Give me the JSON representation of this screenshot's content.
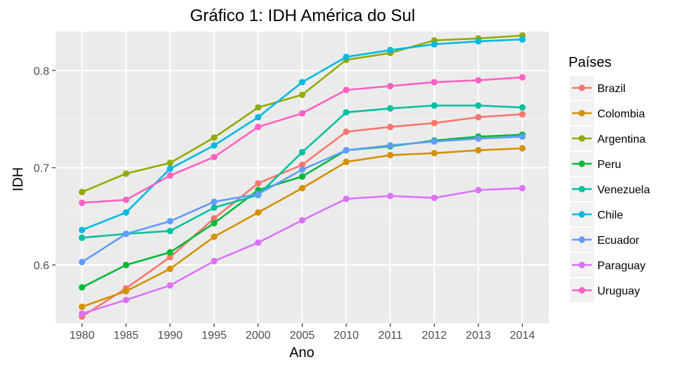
{
  "chart_data": {
    "type": "line",
    "title": "Gráfico 1: IDH América do Sul",
    "xlabel": "Ano",
    "ylabel": "IDH",
    "categories": [
      "1980",
      "1985",
      "1990",
      "1995",
      "2000",
      "2005",
      "2010",
      "2011",
      "2012",
      "2013",
      "2014"
    ],
    "ylim": [
      0.54,
      0.84
    ],
    "yticks": [
      0.6,
      0.7,
      0.8
    ],
    "ytick_labels": [
      "0.6",
      "0.7",
      "0.8"
    ],
    "grid": true,
    "legend": {
      "title": "Países",
      "position": "right"
    },
    "series": [
      {
        "name": "Brazil",
        "color": "#F8766D",
        "values": [
          0.547,
          0.576,
          0.608,
          0.648,
          0.684,
          0.703,
          0.737,
          0.742,
          0.746,
          0.752,
          0.755
        ]
      },
      {
        "name": "Colombia",
        "color": "#D39200",
        "values": [
          0.557,
          0.573,
          0.596,
          0.629,
          0.654,
          0.679,
          0.706,
          0.713,
          0.715,
          0.718,
          0.72
        ]
      },
      {
        "name": "Argentina",
        "color": "#93AA00",
        "values": [
          0.675,
          0.694,
          0.705,
          0.731,
          0.762,
          0.775,
          0.811,
          0.818,
          0.831,
          0.833,
          0.836
        ]
      },
      {
        "name": "Peru",
        "color": "#00BA38",
        "values": [
          0.577,
          0.6,
          0.613,
          0.643,
          0.677,
          0.691,
          0.718,
          0.722,
          0.728,
          0.732,
          0.734
        ]
      },
      {
        "name": "Venezuela",
        "color": "#00C19F",
        "values": [
          0.628,
          0.632,
          0.635,
          0.659,
          0.672,
          0.716,
          0.757,
          0.761,
          0.764,
          0.764,
          0.762
        ]
      },
      {
        "name": "Chile",
        "color": "#00B9E3",
        "values": [
          0.636,
          0.654,
          0.699,
          0.723,
          0.752,
          0.788,
          0.814,
          0.821,
          0.827,
          0.83,
          0.832
        ]
      },
      {
        "name": "Ecuador",
        "color": "#619CFF",
        "values": [
          0.603,
          0.632,
          0.645,
          0.665,
          0.673,
          0.698,
          0.718,
          0.723,
          0.727,
          0.73,
          0.732
        ]
      },
      {
        "name": "Paraguay",
        "color": "#DB72FB",
        "values": [
          0.55,
          0.564,
          0.579,
          0.604,
          0.623,
          0.646,
          0.668,
          0.671,
          0.669,
          0.677,
          0.679
        ]
      },
      {
        "name": "Uruguay",
        "color": "#FF61C3",
        "values": [
          0.664,
          0.667,
          0.692,
          0.711,
          0.742,
          0.756,
          0.78,
          0.784,
          0.788,
          0.79,
          0.793
        ]
      }
    ]
  }
}
